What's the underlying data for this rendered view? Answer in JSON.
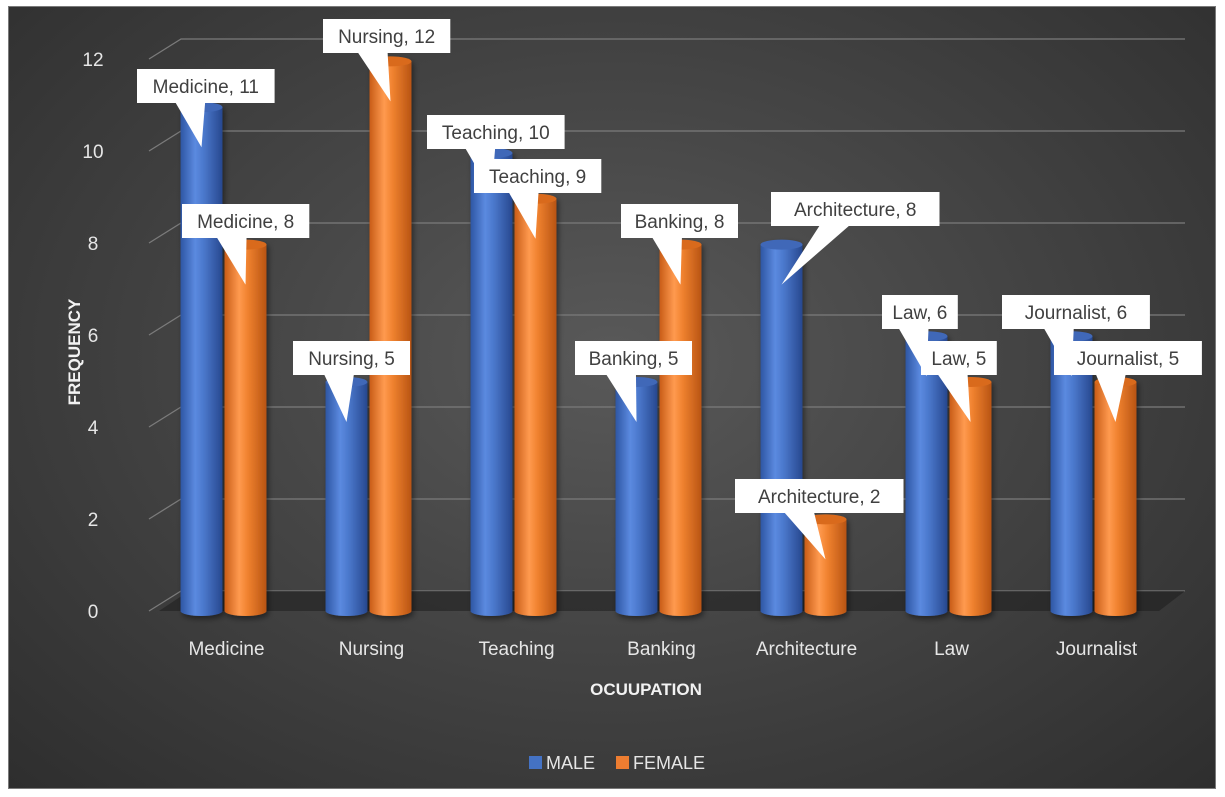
{
  "chart_data": {
    "type": "bar",
    "categories": [
      "Medicine",
      "Nursing",
      "Teaching",
      "Banking",
      "Architecture",
      "Law",
      "Journalist"
    ],
    "series": [
      {
        "name": "MALE",
        "values": [
          11,
          5,
          10,
          5,
          8,
          6,
          6
        ],
        "color": "#4472c4"
      },
      {
        "name": "FEMALE",
        "values": [
          8,
          12,
          9,
          8,
          2,
          5,
          5
        ],
        "color": "#ed7d31"
      }
    ],
    "xlabel": "OCUUPATION",
    "ylabel": "FREQUENCY",
    "ylim": [
      0,
      12
    ],
    "yticks": [
      "0",
      "2",
      "4",
      "6",
      "8",
      "10",
      "12"
    ],
    "data_labels": [
      [
        "Medicine, 11",
        "Nursing, 5",
        "Teaching, 10",
        "Banking, 5",
        "Architecture, 8",
        "Law, 6",
        "Journalist, 6"
      ],
      [
        "Medicine, 8",
        "Nursing, 12",
        "Teaching, 9",
        "Banking, 8",
        "Architecture, 2",
        "Law, 5",
        "Journalist, 5"
      ]
    ],
    "grid": true,
    "legend_position": "bottom",
    "background": "#404040"
  }
}
